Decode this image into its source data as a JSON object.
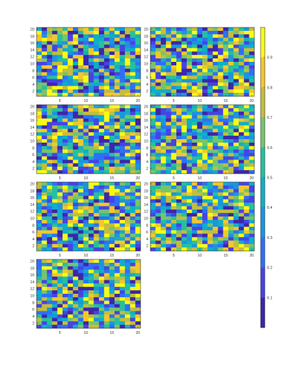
{
  "chart_data": {
    "type": "heatmap",
    "layout": {
      "columns": 2,
      "panel_count": 7
    },
    "grid": {
      "rows": 20,
      "cols": 20,
      "cell_values": "random values in [0, 1], individual cells not legible"
    },
    "x_axis": {
      "range": [
        1,
        20
      ],
      "tick_labels": [
        "5",
        "10",
        "15",
        "20"
      ]
    },
    "y_axis": {
      "range": [
        1,
        20
      ],
      "tick_labels": [
        "2",
        "4",
        "6",
        "8",
        "10",
        "12",
        "14",
        "16",
        "18",
        "20"
      ]
    },
    "colorbar": {
      "range": [
        0.0,
        1.0
      ],
      "tick_labels": [
        "0.1",
        "0.2",
        "0.3",
        "0.4",
        "0.5",
        "0.6",
        "0.7",
        "0.8",
        "0.9"
      ],
      "colormap": [
        "#3e26a8",
        "#4743e4",
        "#2e70f5",
        "#1b95de",
        "#0fafc7",
        "#27c09c",
        "#76c46c",
        "#c3be3b",
        "#f3c72c",
        "#f9fb14"
      ]
    },
    "panels": [
      {
        "id": 1,
        "seed": 11
      },
      {
        "id": 2,
        "seed": 23
      },
      {
        "id": 3,
        "seed": 37
      },
      {
        "id": 4,
        "seed": 41
      },
      {
        "id": 5,
        "seed": 53
      },
      {
        "id": 6,
        "seed": 67
      },
      {
        "id": 7,
        "seed": 79
      }
    ]
  }
}
